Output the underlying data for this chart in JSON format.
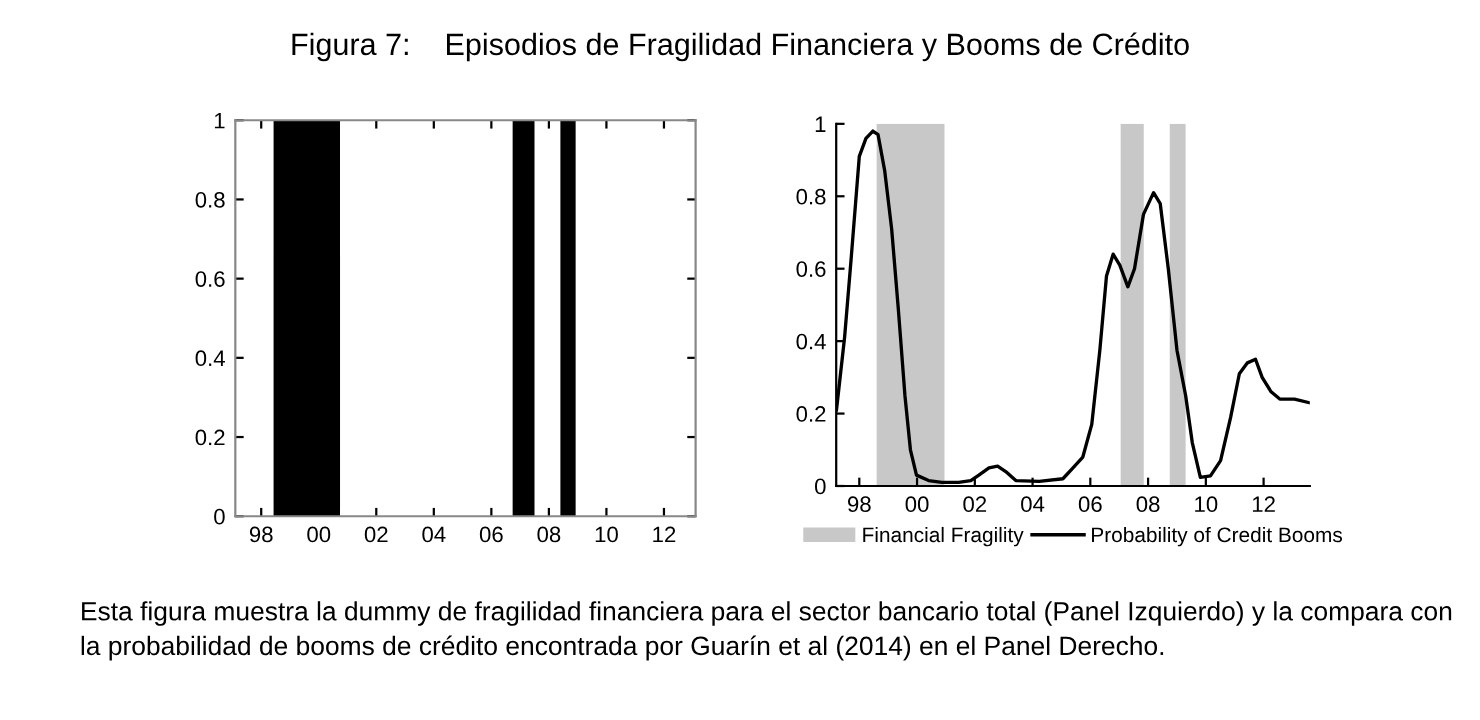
{
  "chart_data": [
    {
      "type": "area",
      "title": "Figura 7:    Episodios de Fragilidad Financiera y Booms de Crédito",
      "series": [
        {
          "color": "#000000",
          "x": [
            1997.1,
            1998.43,
            1998.43,
            2000.74,
            2000.74,
            2006.74,
            2006.74,
            2007.5,
            2007.5,
            2008.4,
            2008.4,
            2008.93,
            2008.93,
            2013.1
          ],
          "values": [
            0,
            0,
            1,
            1,
            0,
            0,
            1,
            1,
            0,
            0,
            1,
            1,
            0,
            0
          ]
        }
      ],
      "xlim": [
        1997.1,
        2013.1
      ],
      "ylim": [
        0,
        1
      ],
      "xticks": [
        {
          "value": 1998,
          "label": "98"
        },
        {
          "value": 2000,
          "label": "00"
        },
        {
          "value": 2002,
          "label": "02"
        },
        {
          "value": 2004,
          "label": "04"
        },
        {
          "value": 2006,
          "label": "06"
        },
        {
          "value": 2008,
          "label": "08"
        },
        {
          "value": 2010,
          "label": "10"
        },
        {
          "value": 2012,
          "label": "12"
        }
      ],
      "yticks": [
        0,
        0.2,
        0.4,
        0.6,
        0.8,
        1
      ],
      "grid": false,
      "legend": false
    },
    {
      "type": "line",
      "series": [
        {
          "name": "Probability of Credit Booms",
          "color": "#000000",
          "x": [
            1997.21,
            1997.49,
            1997.72,
            1998.0,
            1998.23,
            1998.47,
            1998.65,
            1998.88,
            1999.12,
            1999.35,
            1999.58,
            1999.77,
            1999.98,
            2000.4,
            2000.86,
            2001.44,
            2001.86,
            2002.14,
            2002.49,
            2002.79,
            2003.07,
            2003.42,
            2004.23,
            2005.05,
            2005.4,
            2005.74,
            2006.05,
            2006.33,
            2006.56,
            2006.79,
            2007.02,
            2007.3,
            2007.53,
            2007.84,
            2008.19,
            2008.42,
            2008.7,
            2009.0,
            2009.3,
            2009.53,
            2009.81,
            2010.16,
            2010.51,
            2010.86,
            2011.16,
            2011.44,
            2011.72,
            2011.95,
            2012.26,
            2012.56,
            2013.07,
            2013.58
          ],
          "values": [
            0.21,
            0.41,
            0.63,
            0.91,
            0.96,
            0.98,
            0.97,
            0.87,
            0.71,
            0.49,
            0.25,
            0.1,
            0.03,
            0.015,
            0.01,
            0.01,
            0.015,
            0.03,
            0.05,
            0.055,
            0.04,
            0.015,
            0.013,
            0.02,
            0.05,
            0.08,
            0.17,
            0.375,
            0.58,
            0.64,
            0.61,
            0.55,
            0.6,
            0.75,
            0.81,
            0.78,
            0.6,
            0.375,
            0.25,
            0.12,
            0.024,
            0.028,
            0.07,
            0.19,
            0.31,
            0.34,
            0.35,
            0.3,
            0.26,
            0.24,
            0.24,
            0.23
          ]
        }
      ],
      "bands": [
        {
          "axis": "x",
          "from": 1998.6,
          "to": 2000.95,
          "label": "Financial Fragility",
          "color": "#c8c8c8"
        },
        {
          "axis": "x",
          "from": 2007.05,
          "to": 2007.85,
          "color": "#c8c8c8"
        },
        {
          "axis": "x",
          "from": 2008.75,
          "to": 2009.3,
          "color": "#c8c8c8"
        }
      ],
      "xlim": [
        1997.2,
        2013.6
      ],
      "ylim": [
        0,
        1
      ],
      "xticks": [
        {
          "value": 1998,
          "label": "98"
        },
        {
          "value": 2000,
          "label": "00"
        },
        {
          "value": 2002,
          "label": "02"
        },
        {
          "value": 2004,
          "label": "04"
        },
        {
          "value": 2006,
          "label": "06"
        },
        {
          "value": 2008,
          "label": "08"
        },
        {
          "value": 2010,
          "label": "10"
        },
        {
          "value": 2012,
          "label": "12"
        }
      ],
      "yticks": [
        0,
        0.2,
        0.4,
        0.6,
        0.8,
        1
      ],
      "grid": false,
      "legend": "bottom",
      "annotations": [
        "Esta figura muestra la dummy de fragilidad financiera para el sector bancario total (Panel Izquierdo) y la compara con la probabilidad de booms de crédito encontrada por Guarín et al (2014) en el Panel Derecho."
      ]
    }
  ]
}
